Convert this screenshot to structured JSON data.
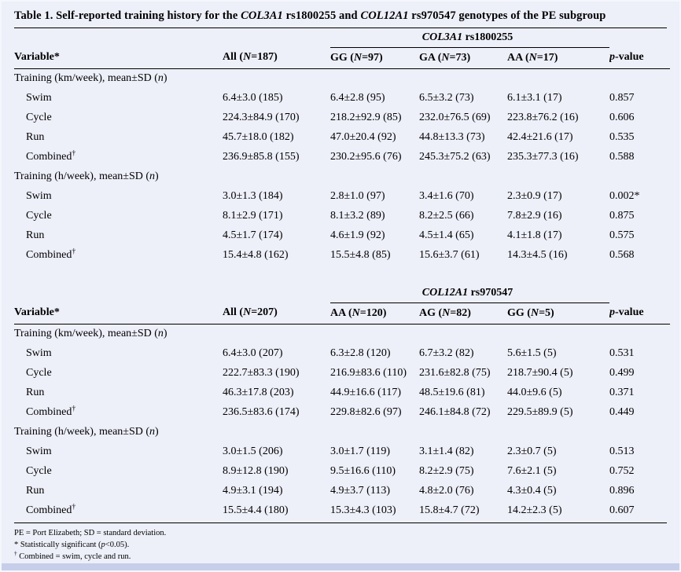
{
  "title": "Table 1. Self-reported training history for the _COL3A1_ rs1800255 and _COL12A1_ rs970547 genotypes of the PE subgroup",
  "panels": [
    {
      "spanner": "_COL3A1_ rs1800255",
      "columns": [
        "Variable*",
        "All (_N_=187)",
        "GG (_N_=97)",
        "GA (_N_=73)",
        "AA (_N_=17)",
        "_p_-value"
      ],
      "sections": [
        {
          "label": "Training (km/week), mean±SD (_n_)",
          "rows": [
            [
              "Swim",
              "6.4±3.0 (185)",
              "6.4±2.8 (95)",
              "6.5±3.2 (73)",
              "6.1±3.1 (17)",
              "0.857"
            ],
            [
              "Cycle",
              "224.3±84.9 (170)",
              "218.2±92.9 (85)",
              "232.0±76.5 (69)",
              "223.8±76.2 (16)",
              "0.606"
            ],
            [
              "Run",
              "45.7±18.0 (182)",
              "47.0±20.4 (92)",
              "44.8±13.3 (73)",
              "42.4±21.6 (17)",
              "0.535"
            ],
            [
              "Combined^†^",
              "236.9±85.8 (155)",
              "230.2±95.6 (76)",
              "245.3±75.2 (63)",
              "235.3±77.3 (16)",
              "0.588"
            ]
          ]
        },
        {
          "label": "Training (h/week), mean±SD (_n_)",
          "rows": [
            [
              "Swim",
              "3.0±1.3 (184)",
              "2.8±1.0 (97)",
              "3.4±1.6 (70)",
              "2.3±0.9 (17)",
              "0.002*"
            ],
            [
              "Cycle",
              "8.1±2.9 (171)",
              "8.1±3.2 (89)",
              "8.2±2.5 (66)",
              "7.8±2.9 (16)",
              "0.875"
            ],
            [
              "Run",
              "4.5±1.7 (174)",
              "4.6±1.9 (92)",
              "4.5±1.4 (65)",
              "4.1±1.8 (17)",
              "0.575"
            ],
            [
              "Combined^†^",
              "15.4±4.8 (162)",
              "15.5±4.8 (85)",
              "15.6±3.7 (61)",
              "14.3±4.5 (16)",
              "0.568"
            ]
          ]
        }
      ]
    },
    {
      "spanner": "_COL12A1_ rs970547",
      "columns": [
        "Variable*",
        "All (_N_=207)",
        "AA (_N_=120)",
        "AG (_N_=82)",
        "GG (_N_=5)",
        "_p_-value"
      ],
      "sections": [
        {
          "label": "Training (km/week), mean±SD (_n_)",
          "rows": [
            [
              "Swim",
              "6.4±3.0 (207)",
              "6.3±2.8 (120)",
              "6.7±3.2 (82)",
              "5.6±1.5 (5)",
              "0.531"
            ],
            [
              "Cycle",
              "222.7±83.3 (190)",
              "216.9±83.6 (110)",
              "231.6±82.8 (75)",
              "218.7±90.4 (5)",
              "0.499"
            ],
            [
              "Run",
              "46.3±17.8 (203)",
              "44.9±16.6 (117)",
              "48.5±19.6 (81)",
              "44.0±9.6 (5)",
              "0.371"
            ],
            [
              "Combined^†^",
              "236.5±83.6 (174)",
              "229.8±82.6 (97)",
              "246.1±84.8 (72)",
              "229.5±89.9 (5)",
              "0.449"
            ]
          ]
        },
        {
          "label": "Training (h/week), mean±SD (_n_)",
          "rows": [
            [
              "Swim",
              "3.0±1.5 (206)",
              "3.0±1.7 (119)",
              "3.1±1.4 (82)",
              "2.3±0.7 (5)",
              "0.513"
            ],
            [
              "Cycle",
              "8.9±12.8 (190)",
              "9.5±16.6 (110)",
              "8.2±2.9 (75)",
              "7.6±2.1 (5)",
              "0.752"
            ],
            [
              "Run",
              "4.9±3.1 (194)",
              "4.9±3.7 (113)",
              "4.8±2.0 (76)",
              "4.3±0.4 (5)",
              "0.896"
            ],
            [
              "Combined^†^",
              "15.5±4.4 (180)",
              "15.3±4.3 (103)",
              "15.8±4.7 (72)",
              "14.2±2.3 (5)",
              "0.607"
            ]
          ]
        }
      ]
    }
  ],
  "footnotes": [
    "PE = Port Elizabeth; SD = standard deviation.",
    "* Statistically significant (_p_<0.05).",
    "^†^ Combined = swim, cycle and run."
  ],
  "colors": {
    "page_background": "#edeff9",
    "rule": "#000000",
    "bottom_band": "#c6cee9"
  }
}
